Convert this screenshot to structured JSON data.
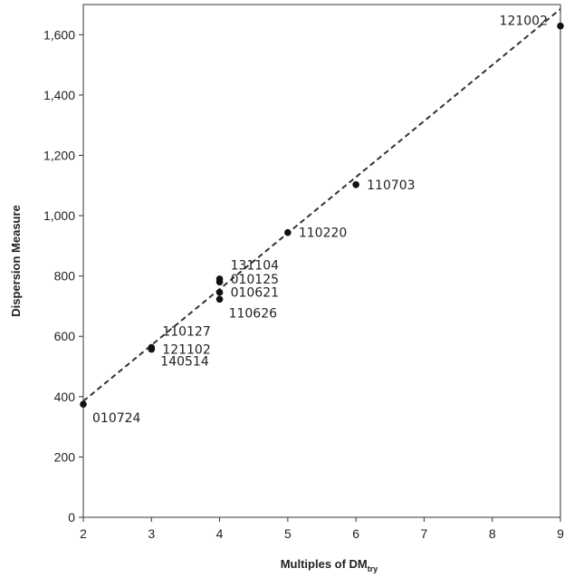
{
  "chart_data": {
    "type": "scatter",
    "title": "",
    "xlabel": {
      "main": "Multiples of DM",
      "subscript": "try"
    },
    "ylabel": "Dispersion Measure",
    "xlim": [
      2,
      9
    ],
    "ylim": [
      0,
      1700
    ],
    "x_ticks": [
      2,
      3,
      4,
      5,
      6,
      7,
      8,
      9
    ],
    "x_tick_labels": [
      "2",
      "3",
      "4",
      "5",
      "6",
      "7",
      "8",
      "9"
    ],
    "y_ticks": [
      0,
      200,
      400,
      600,
      800,
      1000,
      1200,
      1400,
      1600
    ],
    "y_tick_labels": [
      "0",
      "200",
      "400",
      "600",
      "800",
      "1,000",
      "1,200",
      "1,400",
      "1,600"
    ],
    "grid": false,
    "legend": "none",
    "points": [
      {
        "label": "010724",
        "x": 2,
        "y": 375,
        "label_pos": "below-right"
      },
      {
        "label": "110127",
        "x": 3,
        "y": 560,
        "label_pos": "above-right"
      },
      {
        "label": "121102",
        "x": 3,
        "y": 557,
        "label_pos": "right"
      },
      {
        "label": "140514",
        "x": 3,
        "y": 563,
        "label_pos": "below-right"
      },
      {
        "label": "131104",
        "x": 4,
        "y": 780,
        "label_pos": "above-right"
      },
      {
        "label": "010125",
        "x": 4,
        "y": 790,
        "label_pos": "right"
      },
      {
        "label": "010621",
        "x": 4,
        "y": 746,
        "label_pos": "right"
      },
      {
        "label": "110626",
        "x": 4,
        "y": 723,
        "label_pos": "below-right"
      },
      {
        "label": "110220",
        "x": 5,
        "y": 944,
        "label_pos": "right"
      },
      {
        "label": "110703",
        "x": 6,
        "y": 1103,
        "label_pos": "right"
      },
      {
        "label": "121002",
        "x": 9,
        "y": 1629,
        "label_pos": "above-left"
      }
    ],
    "fit_line": {
      "style": "dashed",
      "color": "#333333",
      "x": [
        2,
        9
      ],
      "y": [
        385,
        1685
      ]
    },
    "colors": {
      "marker": "#111111",
      "axis": "#333333",
      "text": "#222222"
    }
  }
}
